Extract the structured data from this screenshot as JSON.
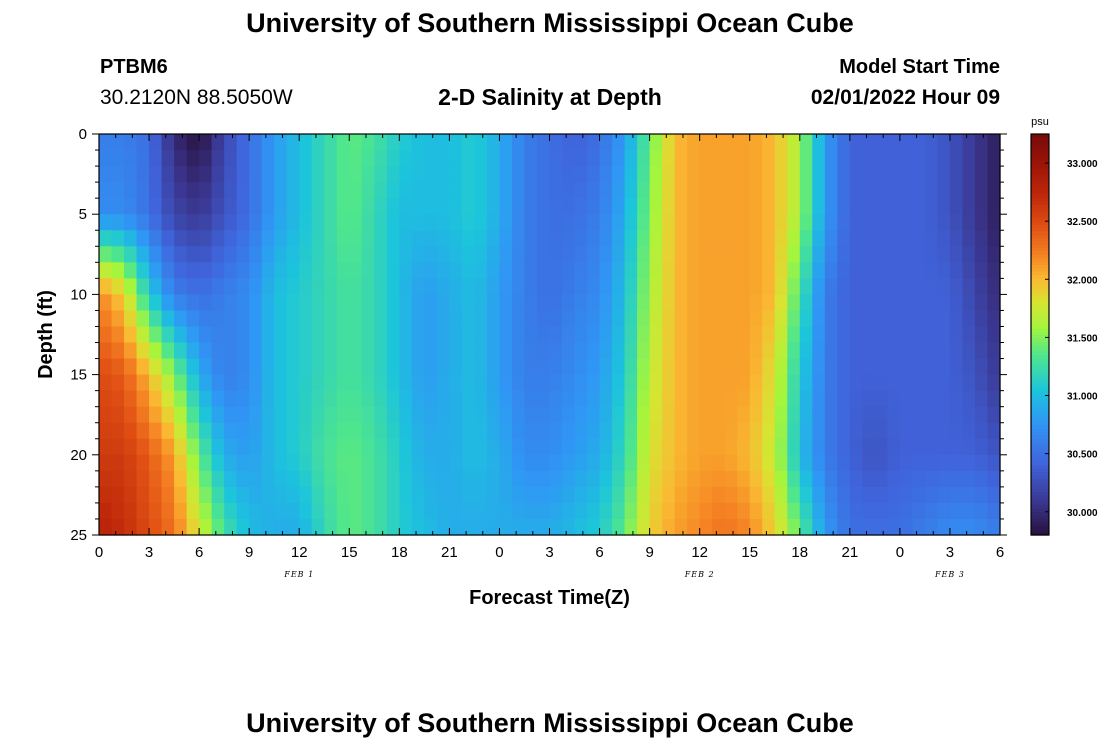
{
  "header": {
    "title": "University of Southern Mississippi Ocean Cube",
    "station": "PTBM6",
    "coords": "30.2120N  88.5050W",
    "subtitle": "2-D Salinity at Depth",
    "start_label": "Model Start Time",
    "start_time": "02/01/2022 Hour 09"
  },
  "footer": {
    "title": "University of Southern Mississippi Ocean Cube"
  },
  "chart_data": {
    "type": "heatmap",
    "title": "2-D Salinity at Depth",
    "xlabel": "Forecast Time(Z)",
    "ylabel": "Depth (ft)",
    "xlim": [
      0,
      54
    ],
    "ylim": [
      0,
      25
    ],
    "y_inverted": true,
    "x_ticks": [
      0,
      3,
      6,
      9,
      12,
      15,
      18,
      21,
      24,
      27,
      30,
      33,
      36,
      39,
      42,
      45,
      48,
      51,
      54
    ],
    "x_tick_labels": [
      "0",
      "3",
      "6",
      "9",
      "12",
      "15",
      "18",
      "21",
      "0",
      "3",
      "6",
      "9",
      "12",
      "15",
      "18",
      "21",
      "0",
      "3",
      "6"
    ],
    "y_ticks": [
      0,
      5,
      10,
      15,
      20,
      25
    ],
    "y_tick_labels": [
      "0",
      "5",
      "10",
      "15",
      "20",
      "25"
    ],
    "date_labels": [
      {
        "label": "FEB 1",
        "x": 12
      },
      {
        "label": "FEB 2",
        "x": 36
      },
      {
        "label": "FEB 3",
        "x": 51
      }
    ],
    "colorbar": {
      "unit": "psu",
      "min": 29.8,
      "max": 33.25,
      "ticks": [
        30.0,
        30.5,
        31.0,
        31.5,
        32.0,
        32.5,
        33.0
      ],
      "tick_labels": [
        "30.000",
        "30.500",
        "31.000",
        "31.500",
        "32.000",
        "32.500",
        "33.000"
      ]
    },
    "depths": [
      0,
      5,
      10,
      15,
      20,
      25
    ],
    "times": [
      0,
      1.5,
      3,
      4.5,
      6,
      7.5,
      9,
      10.5,
      12,
      13.5,
      15,
      16.5,
      18,
      19.5,
      21,
      22.5,
      24,
      25.5,
      27,
      28.5,
      30,
      31.5,
      33,
      34.5,
      36,
      37.5,
      39,
      40.5,
      42,
      43.5,
      45,
      46.5,
      48,
      49.5,
      51,
      52.5,
      54
    ],
    "salinity": [
      [
        30.6,
        30.6,
        30.5,
        30.0,
        29.8,
        30.2,
        30.5,
        30.8,
        31.0,
        31.2,
        31.4,
        31.3,
        31.1,
        31.0,
        31.0,
        31.1,
        30.9,
        30.6,
        30.5,
        30.4,
        30.5,
        30.8,
        31.4,
        32.0,
        32.1,
        32.1,
        32.1,
        32.0,
        31.6,
        30.8,
        30.4,
        30.4,
        30.4,
        30.4,
        30.3,
        30.1,
        29.9
      ],
      [
        30.7,
        30.7,
        30.5,
        30.2,
        30.1,
        30.3,
        30.5,
        30.8,
        31.0,
        31.2,
        31.4,
        31.2,
        31.0,
        31.0,
        31.0,
        31.1,
        30.9,
        30.6,
        30.5,
        30.5,
        30.6,
        30.9,
        31.5,
        32.0,
        32.1,
        32.1,
        32.1,
        32.0,
        31.6,
        30.8,
        30.4,
        30.4,
        30.4,
        30.4,
        30.3,
        30.1,
        29.9
      ],
      [
        32.2,
        31.9,
        31.1,
        30.6,
        30.5,
        30.6,
        30.7,
        31.0,
        31.1,
        31.2,
        31.3,
        31.2,
        31.0,
        30.8,
        30.9,
        31.0,
        30.8,
        30.6,
        30.5,
        30.6,
        30.7,
        31.0,
        31.6,
        32.0,
        32.1,
        32.1,
        32.1,
        32.0,
        31.3,
        30.6,
        30.4,
        30.4,
        30.4,
        30.4,
        30.4,
        30.2,
        30.0
      ],
      [
        32.5,
        32.4,
        32.0,
        31.5,
        30.9,
        30.6,
        30.7,
        31.0,
        31.1,
        31.2,
        31.3,
        31.2,
        31.0,
        30.8,
        30.9,
        31.0,
        30.8,
        30.6,
        30.6,
        30.7,
        30.8,
        31.1,
        31.7,
        32.0,
        32.1,
        32.1,
        32.1,
        31.8,
        31.1,
        30.6,
        30.4,
        30.4,
        30.4,
        30.4,
        30.4,
        30.3,
        30.1
      ],
      [
        32.6,
        32.6,
        32.4,
        32.1,
        31.4,
        30.9,
        30.8,
        31.0,
        31.1,
        31.3,
        31.4,
        31.3,
        31.1,
        30.9,
        30.9,
        31.0,
        30.9,
        30.7,
        30.7,
        30.8,
        30.9,
        31.2,
        31.8,
        32.0,
        32.1,
        32.1,
        32.0,
        31.7,
        31.0,
        30.6,
        30.4,
        30.3,
        30.4,
        30.4,
        30.4,
        30.4,
        30.3
      ],
      [
        32.8,
        32.7,
        32.5,
        32.3,
        31.8,
        31.3,
        31.0,
        30.9,
        30.9,
        31.2,
        31.4,
        31.3,
        31.1,
        31.0,
        30.9,
        30.9,
        30.9,
        30.9,
        30.9,
        31.0,
        31.1,
        31.4,
        31.9,
        32.1,
        32.2,
        32.3,
        32.2,
        31.9,
        31.4,
        30.8,
        30.5,
        30.5,
        30.5,
        30.6,
        30.7,
        30.7,
        30.6
      ]
    ]
  }
}
